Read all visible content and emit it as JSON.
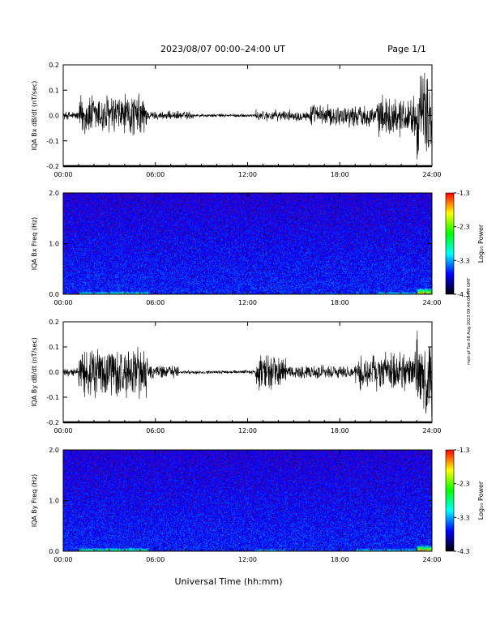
{
  "header": {
    "title": "2023/08/07  00:00–24:00 UT",
    "page": "Page 1/1"
  },
  "footer": {
    "xlabel": "Universal Time (hh:mm)",
    "side_note": "mek-pf Tue 08 Aug 2023 09:44:08 PM GMT"
  },
  "colorbar": {
    "label": "Log₁₀ Power",
    "ticks": [
      "-1.3",
      "-2.3",
      "-3.3",
      "-4.3"
    ],
    "colors": [
      "#ff0000",
      "#ffff00",
      "#00ff00",
      "#00ffff",
      "#0000ff",
      "#000000"
    ]
  },
  "colors": {
    "trace": "#000000",
    "background_spectrogram": "#1a2bd6"
  },
  "chart_data": [
    {
      "type": "line",
      "ylabel": "IQA Bx dB/dt (nT/sec)",
      "xlim": [
        0,
        24
      ],
      "ylim": [
        -0.2,
        0.2
      ],
      "x_ticks": [
        "00:00",
        "06:00",
        "12:00",
        "18:00",
        "24:00"
      ],
      "y_ticks": [
        "-0.2",
        "-0.1",
        "0.0",
        "0.1",
        "0.2"
      ],
      "activity": [
        {
          "start": 0.0,
          "end": 1.0,
          "amp": 0.02
        },
        {
          "start": 1.0,
          "end": 5.5,
          "amp": 0.1
        },
        {
          "start": 5.5,
          "end": 8.5,
          "amp": 0.02
        },
        {
          "start": 8.5,
          "end": 12.5,
          "amp": 0.008
        },
        {
          "start": 12.5,
          "end": 16.0,
          "amp": 0.025
        },
        {
          "start": 16.0,
          "end": 20.5,
          "amp": 0.05
        },
        {
          "start": 20.5,
          "end": 23.0,
          "amp": 0.09
        },
        {
          "start": 23.0,
          "end": 24.0,
          "amp": 0.2
        }
      ]
    },
    {
      "type": "heatmap",
      "ylabel": "IQA Bx Freq (Hz)",
      "xlim": [
        0,
        24
      ],
      "ylim": [
        0,
        2.0
      ],
      "x_ticks": [
        "00:00",
        "06:00",
        "12:00",
        "18:00",
        "24:00"
      ],
      "y_ticks": [
        "0.0",
        "1.0",
        "2.0"
      ],
      "zlim": [
        -4.3,
        -1.3
      ]
    },
    {
      "type": "line",
      "ylabel": "IQA By dB/dt (nT/sec)",
      "xlim": [
        0,
        24
      ],
      "ylim": [
        -0.2,
        0.2
      ],
      "x_ticks": [
        "00:00",
        "06:00",
        "12:00",
        "18:00",
        "24:00"
      ],
      "y_ticks": [
        "-0.2",
        "-0.1",
        "0.0",
        "0.1",
        "0.2"
      ],
      "activity": [
        {
          "start": 0.0,
          "end": 1.0,
          "amp": 0.02
        },
        {
          "start": 1.0,
          "end": 5.5,
          "amp": 0.12
        },
        {
          "start": 5.5,
          "end": 7.5,
          "amp": 0.03
        },
        {
          "start": 7.5,
          "end": 12.5,
          "amp": 0.008
        },
        {
          "start": 12.5,
          "end": 14.5,
          "amp": 0.08
        },
        {
          "start": 14.5,
          "end": 19.0,
          "amp": 0.03
        },
        {
          "start": 19.0,
          "end": 23.0,
          "amp": 0.09
        },
        {
          "start": 23.0,
          "end": 24.0,
          "amp": 0.2
        }
      ]
    },
    {
      "type": "heatmap",
      "ylabel": "IQA By Freq (Hz)",
      "xlim": [
        0,
        24
      ],
      "ylim": [
        0,
        2.0
      ],
      "x_ticks": [
        "00:00",
        "06:00",
        "12:00",
        "18:00",
        "24:00"
      ],
      "y_ticks": [
        "0.0",
        "1.0",
        "2.0"
      ],
      "zlim": [
        -4.3,
        -1.3
      ]
    }
  ]
}
